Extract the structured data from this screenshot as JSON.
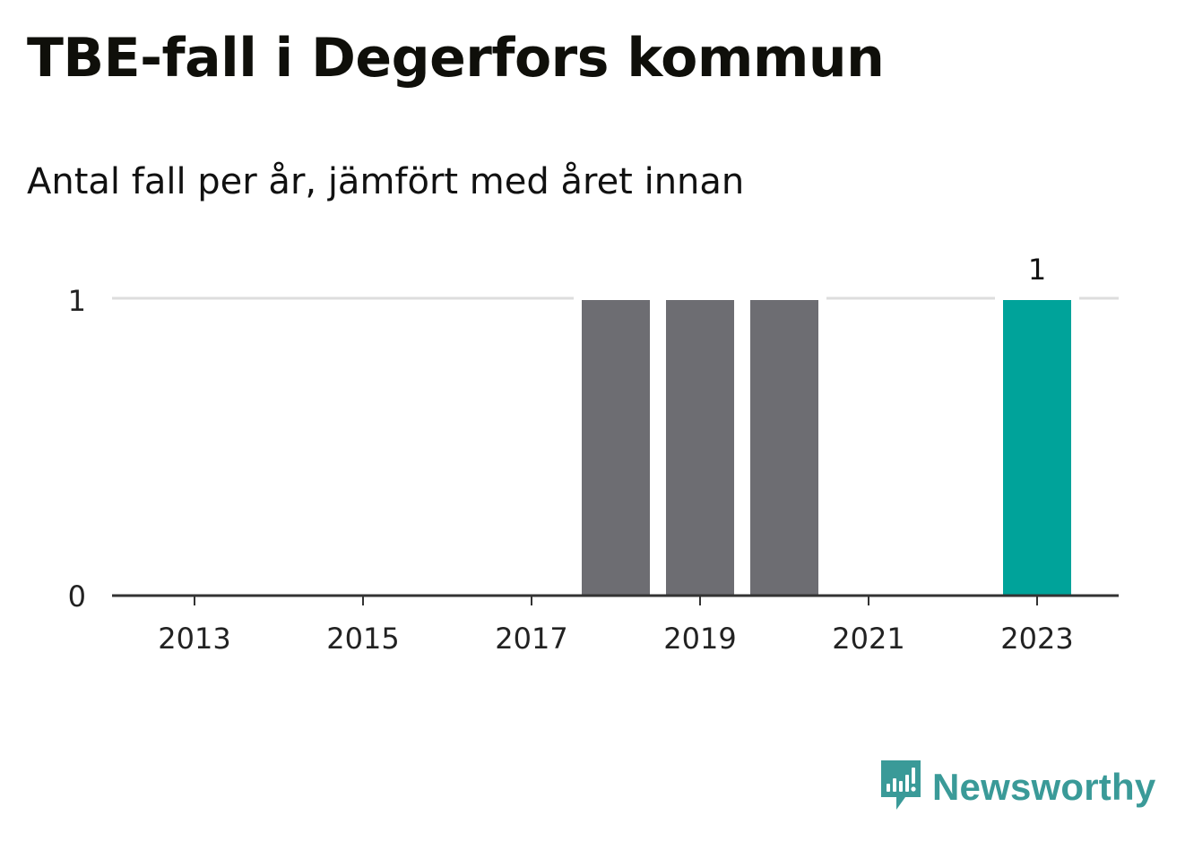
{
  "title": "TBE-fall i Degerfors kommun",
  "subtitle": "Antal fall per år, jämfört med året innan",
  "brand": {
    "name": "Newsworthy",
    "logo_icon": "newsworthy-logo-icon",
    "color": "#3a9a98"
  },
  "colors": {
    "previous_years": "#6d6d72",
    "current_year": "#00a39a",
    "grid": "#dddddd",
    "axis": "#333333"
  },
  "chart_data": {
    "type": "bar",
    "title": "TBE-fall i Degerfors kommun",
    "subtitle": "Antal fall per år, jämfört med året innan",
    "xlabel": "",
    "ylabel": "",
    "categories": [
      2013,
      2014,
      2015,
      2016,
      2017,
      2018,
      2019,
      2020,
      2021,
      2022,
      2023
    ],
    "x_tick_labels": [
      "2013",
      "2015",
      "2017",
      "2019",
      "2021",
      "2023"
    ],
    "values": [
      0,
      0,
      0,
      0,
      0,
      1,
      1,
      1,
      0,
      0,
      1
    ],
    "highlight": "2023",
    "data_labels": [
      {
        "category": "2023",
        "text": "1"
      }
    ],
    "y_tick_labels": [
      "0",
      "1"
    ],
    "ylim": [
      0,
      1
    ],
    "grid": true,
    "legend": "none"
  }
}
